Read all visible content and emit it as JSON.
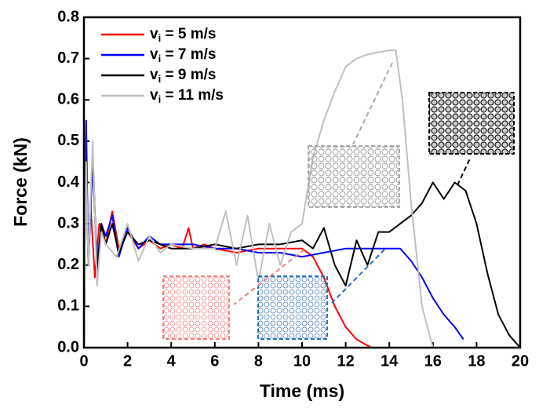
{
  "chart_data": {
    "type": "line",
    "xlabel": "Time (ms)",
    "ylabel": "Force (kN)",
    "xlim": [
      0,
      20
    ],
    "ylim": [
      0,
      0.8
    ],
    "xticks": [
      0,
      2,
      4,
      6,
      8,
      10,
      12,
      14,
      16,
      18,
      20
    ],
    "yticks": [
      {
        "value": 0,
        "label": "0.0"
      },
      0.1,
      0.2,
      0.3,
      0.4,
      0.5,
      0.6,
      0.7,
      0.8
    ],
    "legend": "upper left",
    "series": [
      {
        "name": "vi = 5 m/s",
        "color": "#ff0000",
        "x": [
          0,
          0.1,
          0.2,
          0.3,
          0.5,
          0.7,
          1,
          1.3,
          1.6,
          2,
          2.5,
          3,
          3.5,
          4,
          4.5,
          4.8,
          5,
          5.5,
          6,
          7,
          8,
          9,
          10,
          10.5,
          11,
          11.5,
          12,
          12.5,
          13,
          13.2
        ],
        "values": [
          0,
          0.5,
          0.2,
          0.35,
          0.17,
          0.3,
          0.25,
          0.33,
          0.24,
          0.28,
          0.24,
          0.26,
          0.24,
          0.25,
          0.24,
          0.29,
          0.24,
          0.25,
          0.24,
          0.23,
          0.24,
          0.24,
          0.24,
          0.22,
          0.17,
          0.1,
          0.05,
          0.02,
          0.005,
          0
        ]
      },
      {
        "name": "vi = 7 m/s",
        "color": "#0000ff",
        "x": [
          0,
          0.1,
          0.2,
          0.4,
          0.6,
          0.8,
          1,
          1.3,
          1.6,
          2,
          2.5,
          3,
          3.5,
          4,
          5,
          6,
          7,
          8,
          9,
          10,
          11,
          12,
          13,
          14,
          14.5,
          15,
          15.5,
          16,
          16.5,
          17,
          17.4
        ],
        "values": [
          0,
          0.55,
          0.2,
          0.45,
          0.2,
          0.3,
          0.27,
          0.32,
          0.22,
          0.29,
          0.24,
          0.27,
          0.25,
          0.25,
          0.25,
          0.24,
          0.24,
          0.23,
          0.23,
          0.22,
          0.23,
          0.24,
          0.24,
          0.24,
          0.24,
          0.21,
          0.17,
          0.12,
          0.08,
          0.05,
          0.02
        ]
      },
      {
        "name": "vi = 9 m/s",
        "color": "#000000",
        "x": [
          0,
          0.1,
          0.2,
          0.4,
          0.6,
          0.8,
          1,
          1.3,
          1.6,
          2,
          2.5,
          3,
          4,
          5,
          6,
          7,
          8,
          9,
          10,
          10.5,
          11,
          11.5,
          12,
          12.5,
          13,
          13.5,
          14,
          14.5,
          15,
          15.5,
          16,
          16.5,
          17,
          17.5,
          18,
          18.5,
          19,
          19.5,
          20
        ],
        "values": [
          0,
          0.45,
          0.2,
          0.48,
          0.18,
          0.3,
          0.25,
          0.3,
          0.23,
          0.28,
          0.25,
          0.26,
          0.24,
          0.24,
          0.25,
          0.24,
          0.25,
          0.25,
          0.26,
          0.24,
          0.29,
          0.2,
          0.15,
          0.26,
          0.2,
          0.28,
          0.28,
          0.3,
          0.32,
          0.35,
          0.4,
          0.36,
          0.4,
          0.38,
          0.3,
          0.18,
          0.08,
          0.03,
          0
        ]
      },
      {
        "name": "vi = 11 m/s",
        "color": "#c0c0c0",
        "x": [
          0,
          0.1,
          0.2,
          0.4,
          0.6,
          0.8,
          1,
          1.5,
          2,
          2.5,
          3,
          3.5,
          4,
          5,
          6,
          6.5,
          7,
          7.5,
          8,
          8.5,
          9,
          9.5,
          10,
          10.5,
          11,
          11.5,
          12,
          12.5,
          13,
          14,
          14.3,
          14.6,
          15,
          15.5,
          16
        ],
        "values": [
          0,
          0.45,
          0.2,
          0.5,
          0.15,
          0.28,
          0.25,
          0.22,
          0.3,
          0.21,
          0.27,
          0.23,
          0.25,
          0.24,
          0.24,
          0.33,
          0.2,
          0.32,
          0.16,
          0.3,
          0.2,
          0.28,
          0.3,
          0.46,
          0.55,
          0.62,
          0.68,
          0.7,
          0.71,
          0.72,
          0.72,
          0.6,
          0.35,
          0.1,
          0
        ]
      }
    ]
  }
}
